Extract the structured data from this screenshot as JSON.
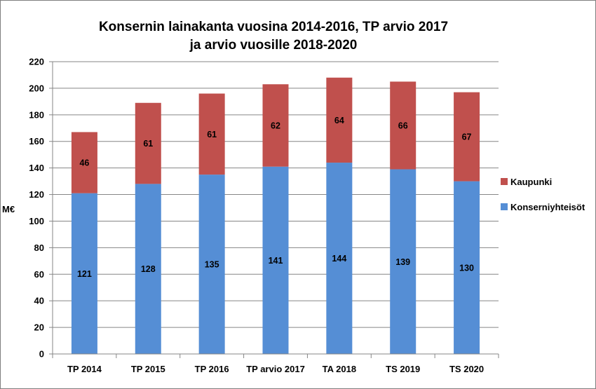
{
  "chart_data": {
    "type": "bar",
    "stacked": true,
    "title": [
      "Konsernin lainakanta vuosina 2014-2016,  TP arvio 2017",
      "ja arvio vuosille 2018-2020"
    ],
    "ylabel": "M€",
    "ylim": [
      0,
      220
    ],
    "yticks": [
      "0",
      "20",
      "40",
      "60",
      "80",
      "100",
      "120",
      "140",
      "160",
      "180",
      "200",
      "220"
    ],
    "grid": true,
    "legend_position": "right",
    "categories": [
      "TP 2014",
      "TP 2015",
      "TP 2016",
      "TP arvio 2017",
      "TA 2018",
      "TS 2019",
      "TS 2020"
    ],
    "series": [
      {
        "name": "Konserniyhteisöt",
        "color": "#558ed5",
        "values": [
          121,
          128,
          135,
          141,
          144,
          139,
          130
        ]
      },
      {
        "name": "Kaupunki",
        "color": "#c0504d",
        "values": [
          46,
          61,
          61,
          62,
          64,
          66,
          67
        ]
      }
    ]
  }
}
